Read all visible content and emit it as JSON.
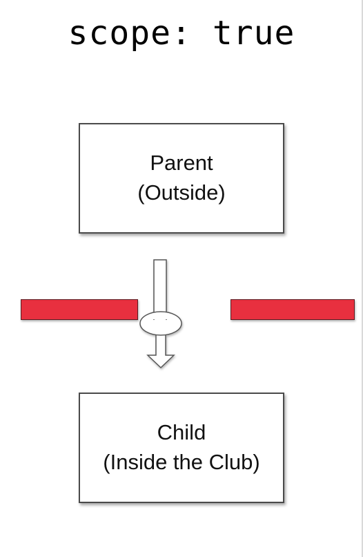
{
  "title": "scope: true",
  "parent": {
    "line1": "Parent",
    "line2": "(Outside)"
  },
  "child": {
    "line1": "Child",
    "line2": "(Inside the Club)"
  },
  "colors": {
    "barrier": "#e8303f",
    "box_border": "#4a4a4a",
    "arrow_stroke": "#555555"
  }
}
